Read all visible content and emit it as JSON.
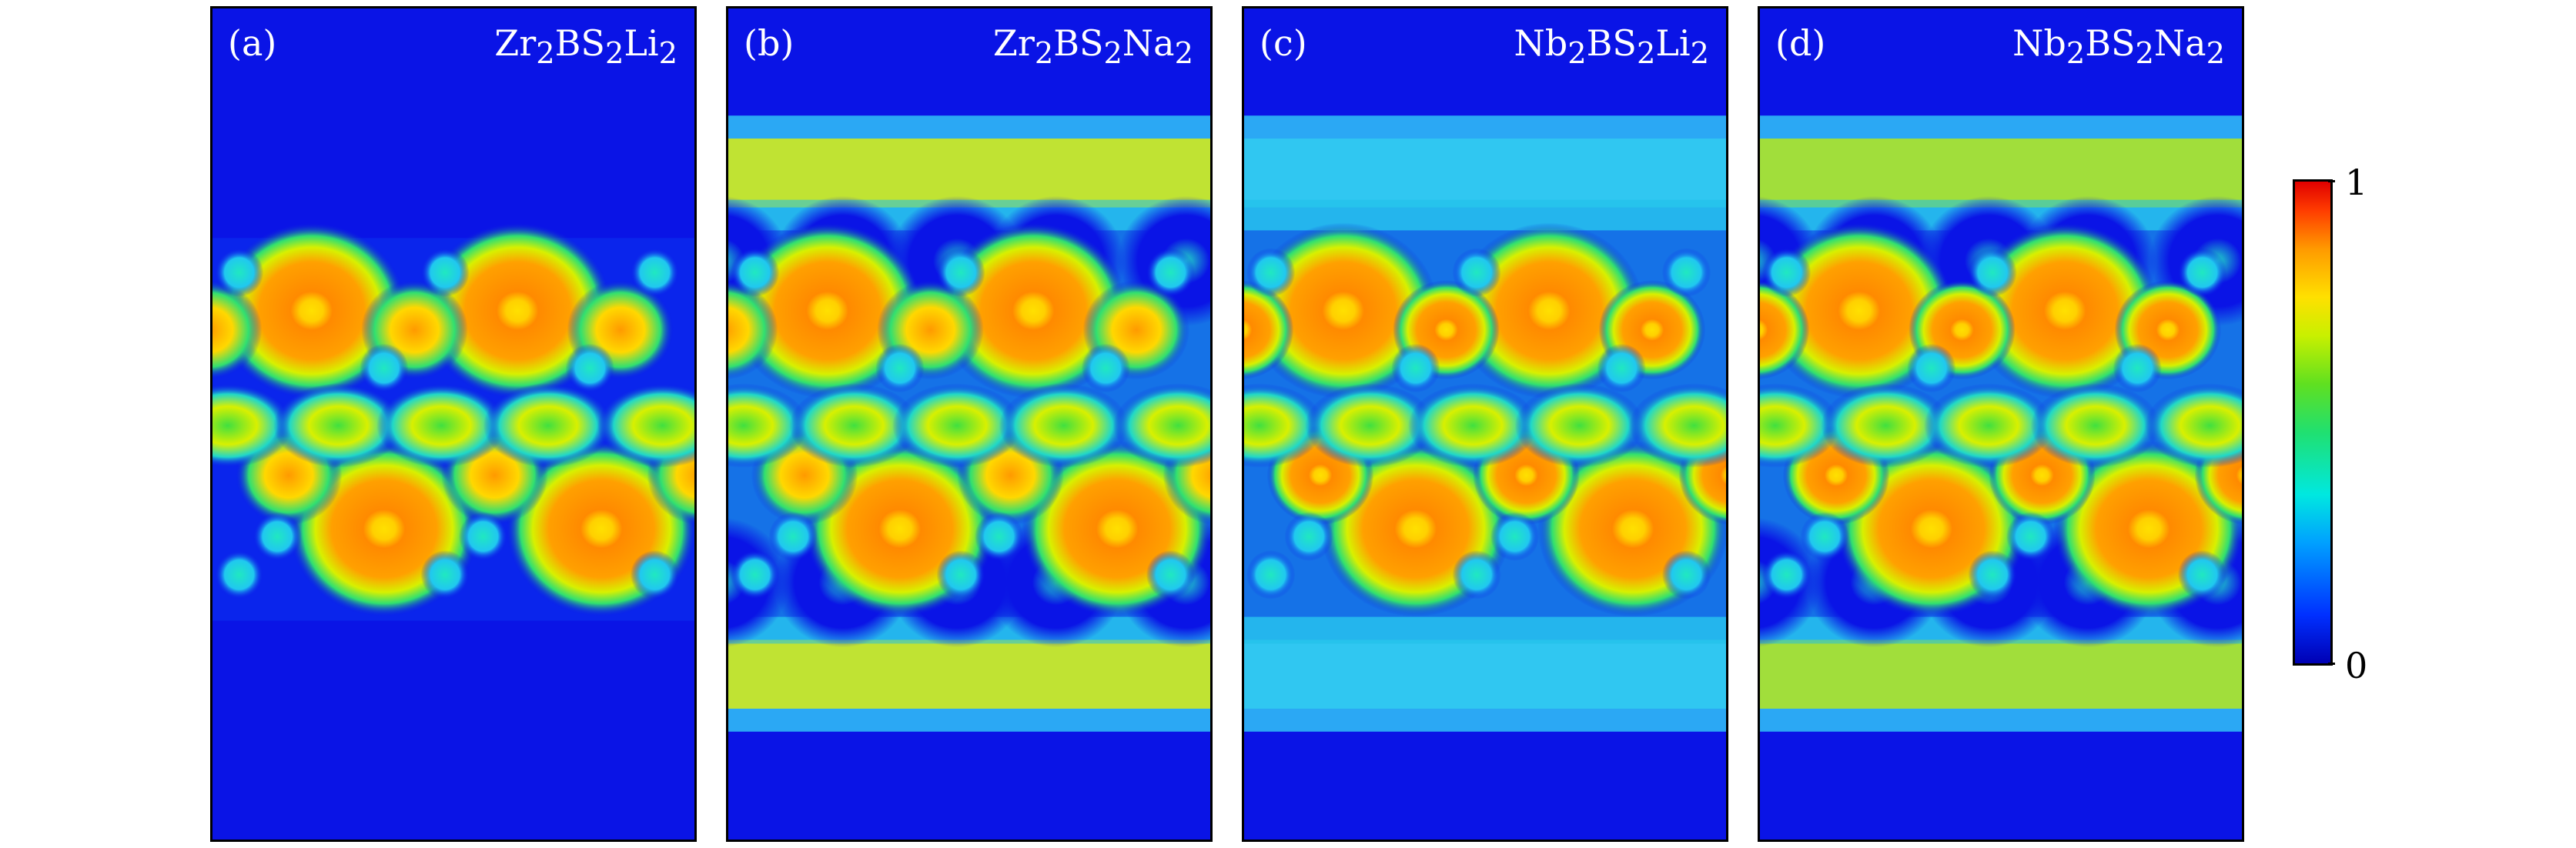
{
  "figure": {
    "panels": [
      {
        "label": "(a)",
        "formula_base": [
          "Zr",
          "BS",
          "Li"
        ],
        "formula_sub": [
          "2",
          "2",
          "2"
        ],
        "bands": false,
        "band_color": ""
      },
      {
        "label": "(b)",
        "formula_base": [
          "Zr",
          "BS",
          "Na"
        ],
        "formula_sub": [
          "2",
          "2",
          "2"
        ],
        "bands": true,
        "band_color": "#c8e628"
      },
      {
        "label": "(c)",
        "formula_base": [
          "Nb",
          "BS",
          "Li"
        ],
        "formula_sub": [
          "2",
          "2",
          "2"
        ],
        "bands": true,
        "band_color": "#30c8f0"
      },
      {
        "label": "(d)",
        "formula_base": [
          "Nb",
          "BS",
          "Na"
        ],
        "formula_sub": [
          "2",
          "2",
          "2"
        ],
        "bands": true,
        "band_color": "#a8e030"
      }
    ],
    "colorbar": {
      "min_label": "0",
      "max_label": "1",
      "colors": {
        "low": "#0000b4",
        "mid": "#20e070",
        "high": "#e00000"
      }
    }
  }
}
